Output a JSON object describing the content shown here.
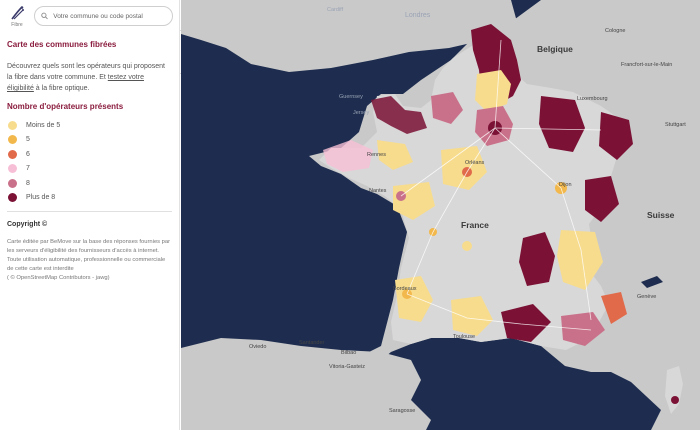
{
  "header": {
    "logo_icon": "fibre-logo-icon",
    "logo_text": "Fibre",
    "search_placeholder": "Votre commune ou code postal"
  },
  "sidebar": {
    "title": "Carte des communes fibrées",
    "intro_before_link": "Découvrez quels sont les opérateurs qui proposent la fibre dans votre commune. Et ",
    "intro_link": "testez votre éligibilité",
    "intro_after_link": " à la fibre optique.",
    "legend_title": "Nombre d'opérateurs présents",
    "legend": [
      {
        "label": "Moins de 5",
        "color": "#f7dc8e"
      },
      {
        "label": "5",
        "color": "#f2b84b"
      },
      {
        "label": "6",
        "color": "#e06a4a"
      },
      {
        "label": "7",
        "color": "#f7bfd6"
      },
      {
        "label": "8",
        "color": "#c9718a"
      },
      {
        "label": "Plus de 8",
        "color": "#7b1236"
      }
    ],
    "copyright_title": "Copyright ©",
    "copyright_text": "Carte éditée par BeMove sur la base des réponses fournies par les serveurs d'éligibilité des fournisseurs d'accès à internet. Toute utilisation automatique, professionnelle ou commerciale de cette carte est interdite",
    "attribution": "( © OpenStreetMap Contributors - jawg)"
  },
  "map": {
    "labels": {
      "cardiff": "Cardiff",
      "londres": "Londres",
      "belgique": "Belgique",
      "cologne": "Cologne",
      "frankfurt": "Francfort-sur-le-Main",
      "luxembourg": "Luxembourg",
      "stuttgart": "Stuttgart",
      "guernsey": "Guernsey",
      "jersey": "Jersey",
      "rennes": "Rennes",
      "orleans": "Orléans",
      "nantes": "Nantes",
      "dijon": "Dijon",
      "suisse": "Suisse",
      "france": "France",
      "bordeaux": "Bordeaux",
      "toulouse": "Toulouse",
      "geneve": "Genève",
      "oviedo": "Oviedo",
      "santander": "Santander",
      "bilbao": "Bilbao",
      "vitoria": "Vitoria-Gasteiz",
      "saragosse": "Saragosse"
    }
  }
}
